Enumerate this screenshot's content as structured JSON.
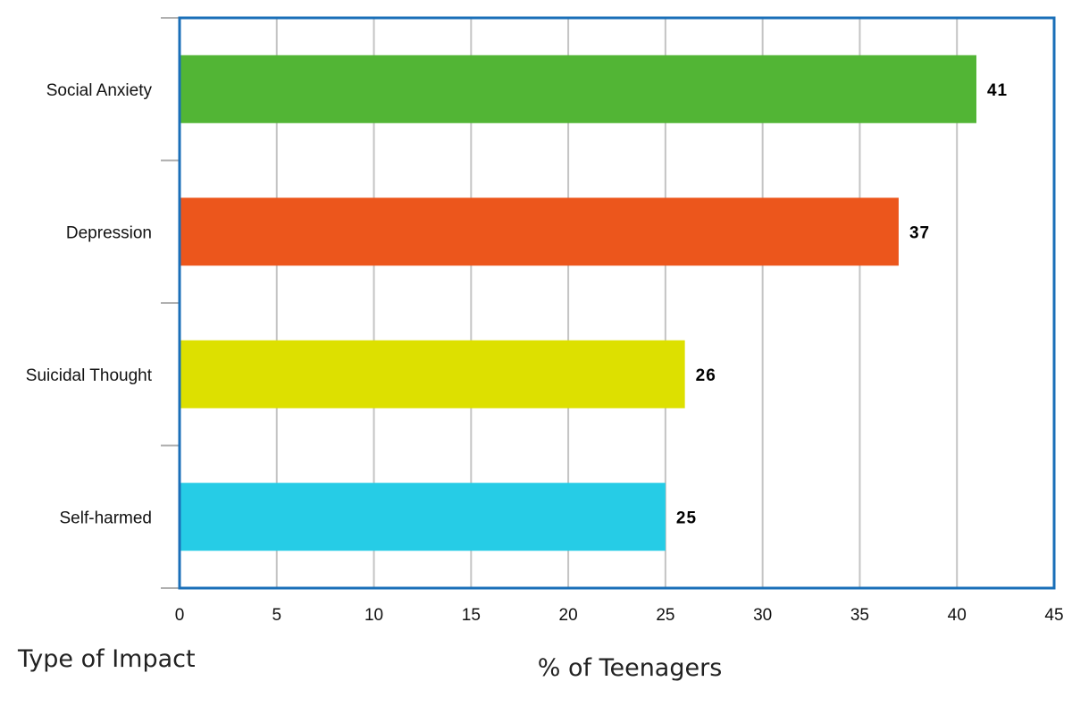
{
  "chart_data": {
    "type": "bar",
    "orientation": "horizontal",
    "categories": [
      "Social Anxiety",
      "Depression",
      "Suicidal Thought",
      "Self-harmed"
    ],
    "values": [
      41,
      37,
      26,
      25
    ],
    "value_labels": [
      "41",
      "37",
      "26",
      "25"
    ],
    "colors": [
      "#52b535",
      "#ec561c",
      "#dde000",
      "#26cce6"
    ],
    "xlim": [
      0,
      45
    ],
    "xticks": [
      0,
      5,
      10,
      15,
      20,
      25,
      30,
      35,
      40,
      45
    ],
    "xlabel": "% of Teenagers",
    "ylabel": "Type of Impact",
    "grid": "vertical",
    "frame_color": "#1a6fb8",
    "grid_color": "#c4c4c4"
  }
}
